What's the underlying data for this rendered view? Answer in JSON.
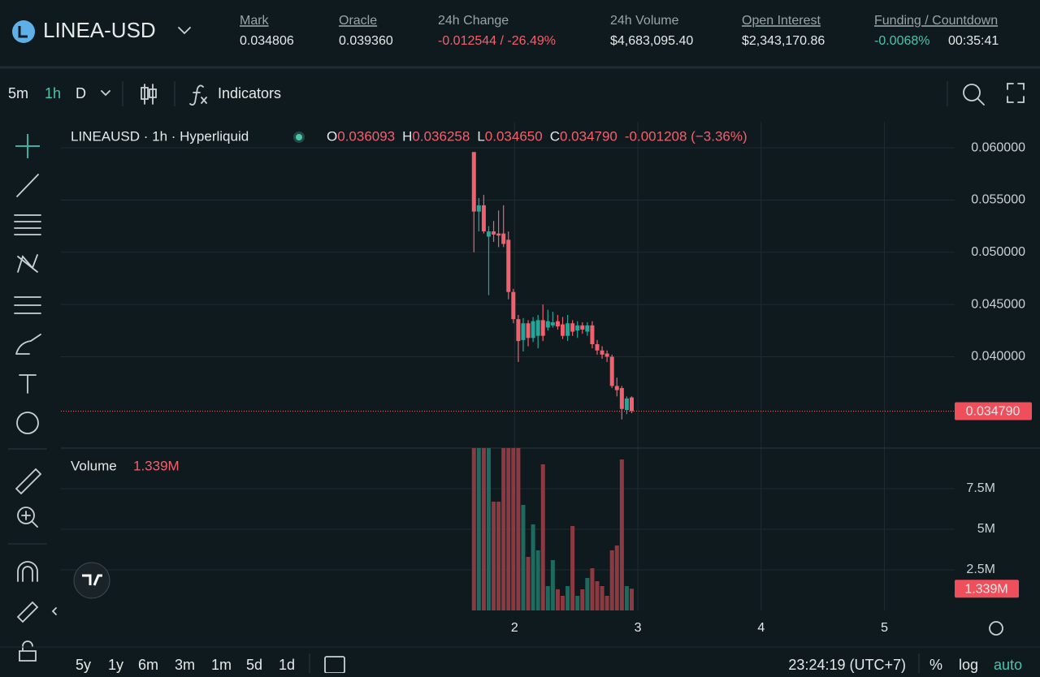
{
  "header": {
    "symbol": "LINEA-USD",
    "stats": [
      {
        "label": "Mark",
        "value": "0.034806"
      },
      {
        "label": "Oracle",
        "value": "0.039360"
      },
      {
        "label": "24h Change",
        "value": "-0.012544 / -26.49%"
      },
      {
        "label": "24h Volume",
        "value": "$4,683,095.40"
      },
      {
        "label": "Open Interest",
        "value": "$2,343,170.86"
      }
    ],
    "funding": {
      "label": "Funding / Countdown",
      "rate": "-0.0068%",
      "countdown": "00:35:41"
    }
  },
  "toolbar": {
    "intervals": [
      "5m",
      "1h",
      "D"
    ],
    "indicators": "Indicators"
  },
  "chart": {
    "type": "candlestick",
    "legend": {
      "title": "LINEAUSD · 1h · Hyperliquid",
      "ohlc": [
        {
          "key": "O",
          "value": "0.036093"
        },
        {
          "key": "H",
          "value": "0.036258"
        },
        {
          "key": "L",
          "value": "0.034650"
        },
        {
          "key": "C",
          "value": "0.034790"
        }
      ],
      "change": "-0.001208 (−3.36%)"
    },
    "x": [
      1.67,
      1.71,
      1.75,
      1.79,
      1.83,
      1.87,
      1.91,
      1.95,
      1.99,
      2.03,
      2.07,
      2.11,
      2.15,
      2.19,
      2.23,
      2.27,
      2.31,
      2.35,
      2.39,
      2.43,
      2.47,
      2.51,
      2.55,
      2.59,
      2.63,
      2.67,
      2.71,
      2.75,
      2.79,
      2.83,
      2.87,
      2.91,
      2.95
    ],
    "open": [
      0.0596,
      0.0539,
      0.0545,
      0.0515,
      0.052,
      0.0518,
      0.0518,
      0.0512,
      0.0462,
      0.0436,
      0.0416,
      0.0432,
      0.0418,
      0.042,
      0.0435,
      0.0428,
      0.043,
      0.0434,
      0.0431,
      0.042,
      0.0432,
      0.0425,
      0.043,
      0.0424,
      0.043,
      0.0412,
      0.0406,
      0.0403,
      0.04,
      0.0372,
      0.037,
      0.0349,
      0.0361
    ],
    "high": [
      0.0596,
      0.0552,
      0.0555,
      0.0525,
      0.053,
      0.054,
      0.0545,
      0.052,
      0.0465,
      0.044,
      0.0437,
      0.0435,
      0.0438,
      0.044,
      0.045,
      0.0445,
      0.0443,
      0.044,
      0.0438,
      0.044,
      0.0435,
      0.0434,
      0.0433,
      0.0433,
      0.0434,
      0.0416,
      0.041,
      0.0406,
      0.0402,
      0.038,
      0.0372,
      0.0362,
      0.0362
    ],
    "low": [
      0.05,
      0.052,
      0.0518,
      0.0459,
      0.051,
      0.0505,
      0.0505,
      0.0455,
      0.0432,
      0.0395,
      0.0405,
      0.041,
      0.0414,
      0.0408,
      0.0415,
      0.0425,
      0.0428,
      0.0426,
      0.0417,
      0.0415,
      0.042,
      0.0418,
      0.0422,
      0.042,
      0.0408,
      0.0402,
      0.0398,
      0.0395,
      0.037,
      0.0362,
      0.034,
      0.0345,
      0.0346
    ],
    "close": [
      0.0539,
      0.0545,
      0.052,
      0.052,
      0.0517,
      0.0516,
      0.0508,
      0.0462,
      0.0436,
      0.0415,
      0.0432,
      0.0418,
      0.0434,
      0.0435,
      0.042,
      0.0434,
      0.0433,
      0.0429,
      0.042,
      0.0432,
      0.0424,
      0.043,
      0.0426,
      0.043,
      0.0412,
      0.0406,
      0.0402,
      0.04,
      0.0372,
      0.0368,
      0.035,
      0.036,
      0.03479
    ],
    "up_color": "#26a69a",
    "down_color": "#f0616d",
    "xlim": [
      -1.68,
      5.57
    ],
    "xticks": [
      2,
      3,
      4,
      5
    ],
    "ylim": [
      0.03125,
      0.0625
    ],
    "yticks": [
      {
        "value": 0.04,
        "label": "0.040000"
      },
      {
        "value": 0.045,
        "label": "0.045000"
      },
      {
        "value": 0.05,
        "label": "0.050000"
      },
      {
        "value": 0.055,
        "label": "0.055000"
      },
      {
        "value": 0.06,
        "label": "0.060000"
      }
    ],
    "last_price": {
      "value": 0.03479,
      "label": "0.034790"
    },
    "volume": {
      "label": "Volume",
      "last": "1.339M",
      "values": [
        10500000,
        10500000,
        10500000,
        10500000,
        6700000,
        6700000,
        10500000,
        10500000,
        10500000,
        10500000,
        6500000,
        3300000,
        5300000,
        3700000,
        9000000,
        1500000,
        3100000,
        1300000,
        900000,
        1500000,
        5200000,
        900000,
        1300000,
        2000000,
        2600000,
        1800000,
        1500000,
        900000,
        3700000,
        4000000,
        9300000,
        1500000,
        1339000
      ],
      "ylim": [
        0,
        10000000
      ],
      "yticks": [
        {
          "value": 2500000,
          "label": "2.5M"
        },
        {
          "value": 5000000,
          "label": "5M"
        },
        {
          "value": 7500000,
          "label": "7.5M"
        }
      ],
      "last_tag": {
        "value": 1339000,
        "label": "1.339M"
      }
    }
  },
  "footer": {
    "ranges": [
      "5y",
      "1y",
      "6m",
      "3m",
      "1m",
      "5d",
      "1d"
    ],
    "clock": "23:24:19 (UTC+7)",
    "options": [
      "%",
      "log",
      "auto"
    ]
  }
}
